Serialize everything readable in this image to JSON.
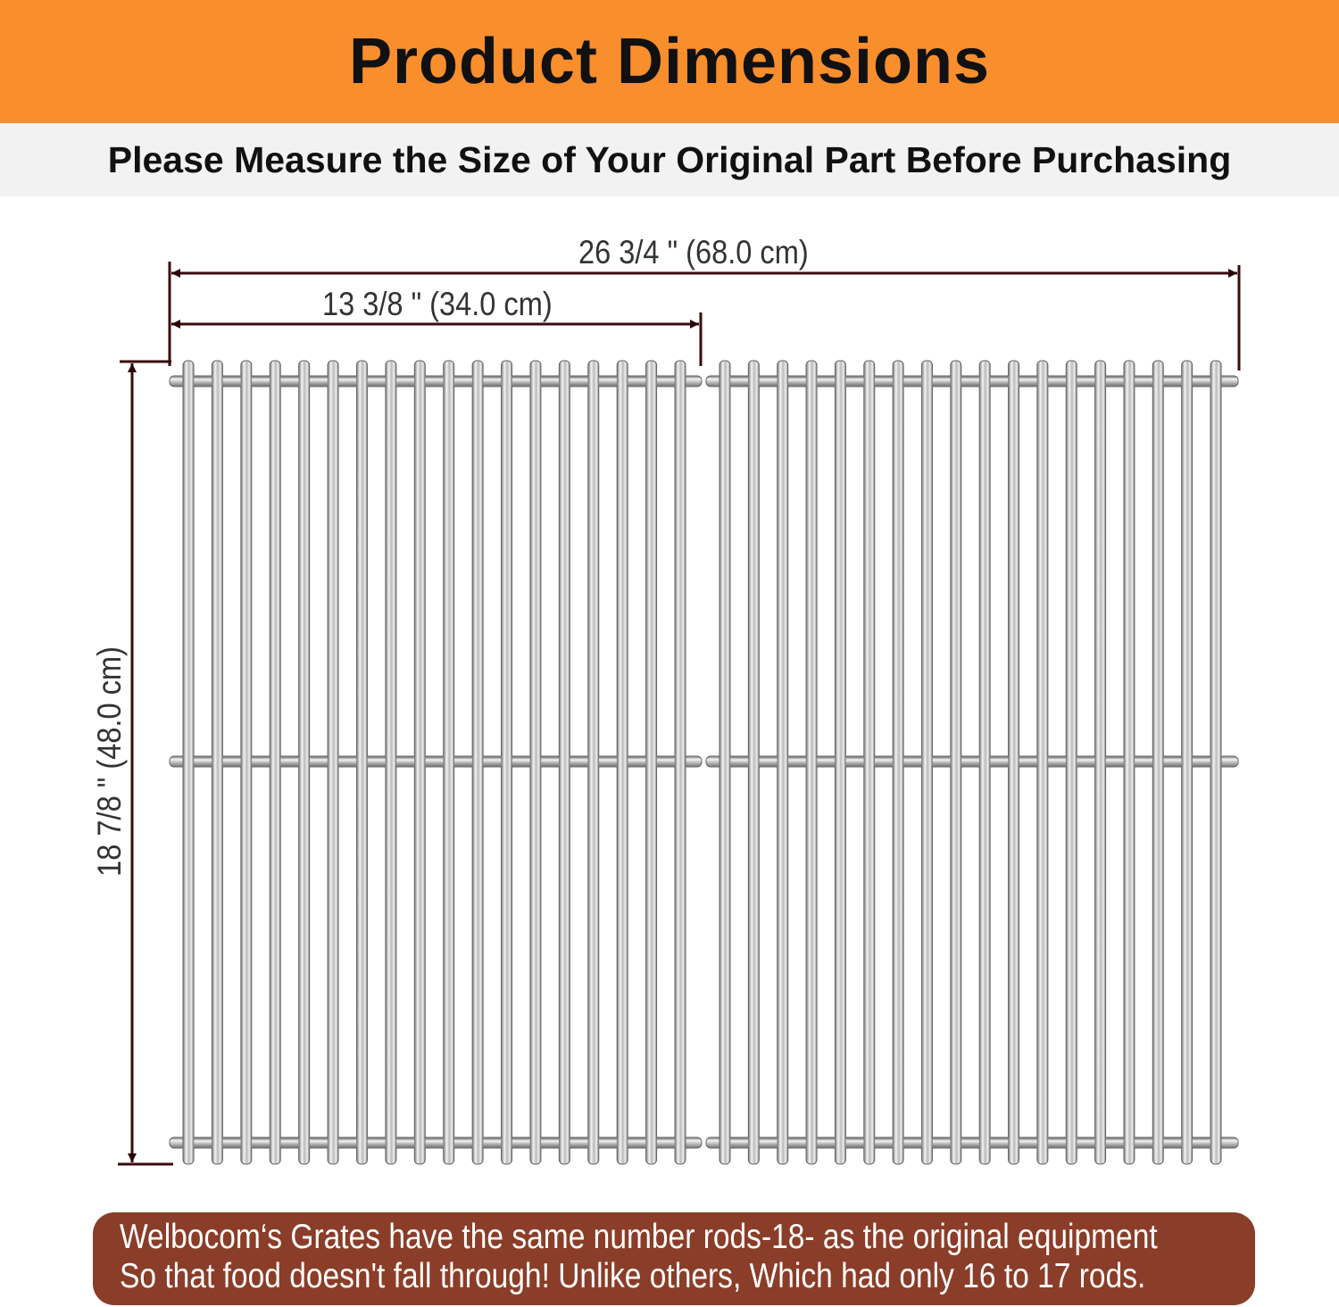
{
  "header": {
    "title": "Product Dimensions"
  },
  "subheader": {
    "text": "Please Measure the Size of Your Original Part Before Purchasing"
  },
  "dimensions": {
    "total_width": "26 3/4 \" (68.0 cm)",
    "single_width": "13 3/8 \" (34.0 cm)",
    "depth": "18 7/8 \" (48.0 cm)"
  },
  "grates": {
    "count": 2,
    "rods_per_grate": 18,
    "cross_bars": 3
  },
  "banner": {
    "line1": "Welbocom‘s Grates have the same number rods-18- as the original equipment",
    "line2": "So that food doesn't fall through!  Unlike others, Which had only 16 to 17 rods."
  },
  "colors": {
    "header_bg": "#f98e2d",
    "subheader_bg": "#f2f2f2",
    "dimension_line": "#3a0a0e",
    "banner_bg": "#8a3d28"
  }
}
